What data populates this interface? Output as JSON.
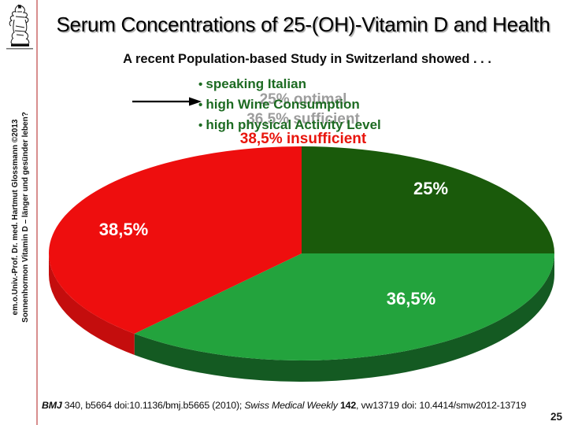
{
  "header": {
    "title": "Serum Concentrations of 25-(OH)-Vitamin D and Health",
    "subtitle": "A recent Population-based Study in Switzerland showed . . ."
  },
  "bullets": {
    "items": [
      "speaking Italian",
      "high Wine Consumption",
      "high physical Activity Level"
    ]
  },
  "chart_data": {
    "type": "pie",
    "style": "3d",
    "start": "12-oclock, clockwise",
    "unit": "percent",
    "slices": [
      {
        "value": 25,
        "label": "25%",
        "legend": "25% optimal",
        "color": "#1a5a0b",
        "side_color": "#0e3a08",
        "legend_color": "#9d9d9d"
      },
      {
        "value": 36.5,
        "label": "36,5%",
        "legend": "36,5% sufficient",
        "color": "#23a33d",
        "side_color": "#145a22",
        "legend_color": "#9d9d9d"
      },
      {
        "value": 38.5,
        "label": "38,5%",
        "legend": "38,5% insufficient",
        "color": "#ee0e0e",
        "side_color": "#c40d0d",
        "legend_color": "#e8150d"
      }
    ]
  },
  "sidebar": {
    "line1": "em.o.Univ.-Prof. Dr. med. Hartmut Glossmann ©2013",
    "line2": "Sonnenhormon Vitamin D – länger und gesünder leben?"
  },
  "footer": {
    "citation": {
      "journal1": "BMJ",
      "text1": " 340, b5664 doi:10.1136/bmj.b5665 (2010); ",
      "journal2": "Swiss Medical Weekly",
      "volume": " 142",
      "text2": ", vw13719 doi: 10.4414/smw2012-13719"
    },
    "page_number": "25"
  },
  "colors": {
    "bullet_green": "#1d6b22",
    "hidden_gray": "#9d9d9d",
    "insufficient_red": "#e8150d",
    "sidebar_rule_pink": "#d88f8f",
    "pie_dark_green": "#1a5a0b",
    "pie_green": "#23a33d",
    "pie_red": "#ee0e0e"
  },
  "icons": {
    "logo": "crest-engraving",
    "arrow": "right-arrow"
  }
}
